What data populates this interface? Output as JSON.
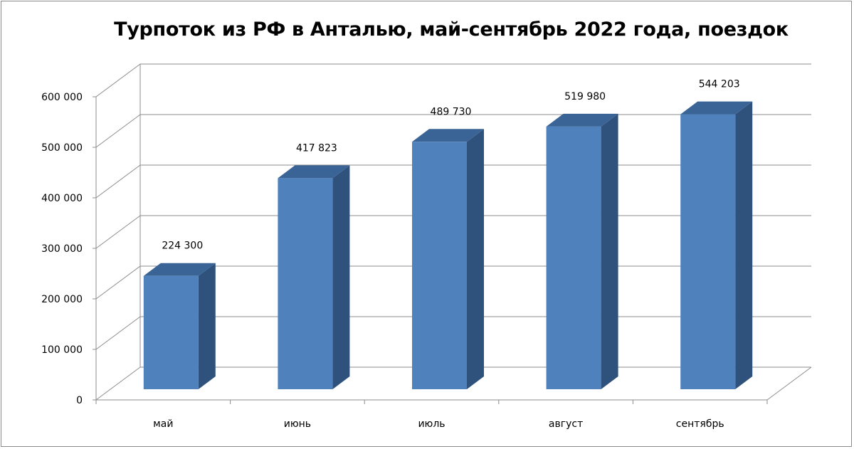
{
  "chart_data": {
    "type": "bar",
    "style": "3d-column",
    "title": "Турпоток из РФ в Анталью, май-сентябрь 2022 года, поездок",
    "categories": [
      "май",
      "июнь",
      "июль",
      "август",
      "сентябрь"
    ],
    "values": [
      224300,
      417823,
      489730,
      519980,
      544203
    ],
    "data_labels": [
      "224 300",
      "417 823",
      "489 730",
      "519 980",
      "544 203"
    ],
    "ylim": [
      0,
      600000
    ],
    "y_ticks": [
      0,
      100000,
      200000,
      300000,
      400000,
      500000,
      600000
    ],
    "y_tick_labels": [
      "0",
      "100 000",
      "200 000",
      "300 000",
      "400 000",
      "500 000",
      "600 000"
    ],
    "grid": true,
    "legend": "none",
    "colors": {
      "bar_front": "#4f81bd",
      "bar_side": "#2f527c",
      "bar_top": "#3a6496",
      "gridline": "#8c8c8c"
    }
  }
}
